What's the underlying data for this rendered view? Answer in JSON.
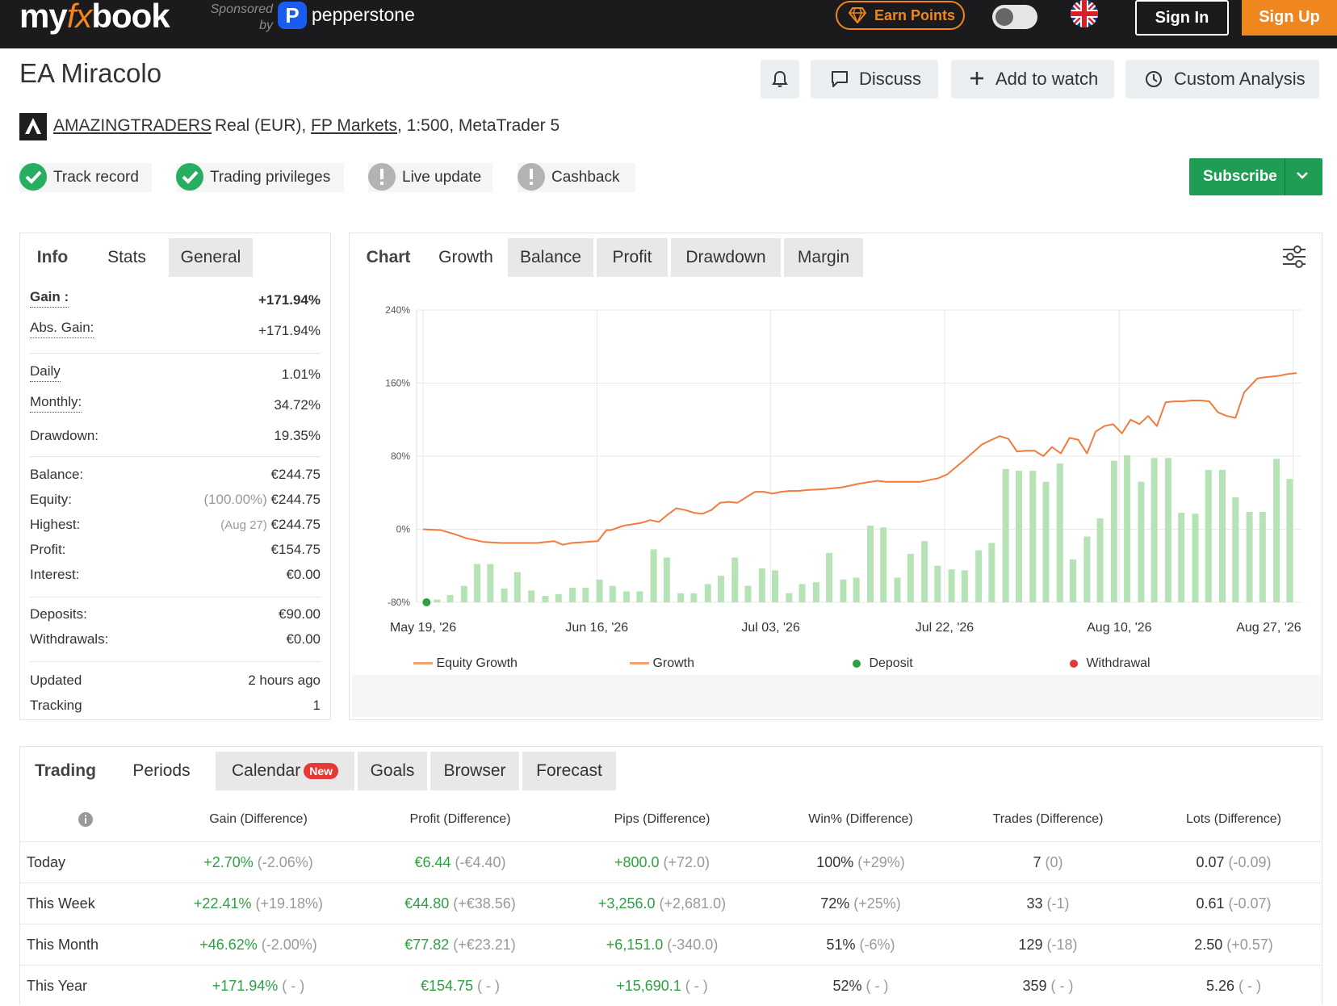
{
  "topbar": {
    "logo_pre": "my",
    "logo_fx": "fx",
    "logo_post": "book",
    "sponsored_line1": "Sponsored",
    "sponsored_line2": "by",
    "sponsor_mark": "P",
    "sponsor_name": "pepperstone",
    "earn_points": "Earn Points",
    "sign_in": "Sign In",
    "sign_up": "Sign Up",
    "accent_color": "#f0861e"
  },
  "header": {
    "title": "EA Miracolo",
    "buttons": {
      "discuss": "Discuss",
      "add_to_watch": "Add to watch",
      "custom_analysis": "Custom Analysis"
    },
    "owner": "AMAZINGTRADERS",
    "account_type": "Real (EUR),",
    "broker": "FP Markets",
    "account_rest": ", 1:500, MetaTrader 5",
    "badges": [
      {
        "label": "Track record",
        "status": "verified"
      },
      {
        "label": "Trading privileges",
        "status": "verified"
      },
      {
        "label": "Live update",
        "status": "warning"
      },
      {
        "label": "Cashback",
        "status": "warning"
      }
    ],
    "subscribe": "Subscribe"
  },
  "info_panel": {
    "tabs": [
      "Info",
      "Stats",
      "General"
    ],
    "gain_label": "Gain :",
    "gain_value": "+171.94%",
    "abs_gain_label": "Abs. Gain:",
    "abs_gain_value": "+171.94%",
    "daily_label": "Daily",
    "daily_value": "1.01%",
    "monthly_label": "Monthly:",
    "monthly_value": "34.72%",
    "drawdown_label": "Drawdown:",
    "drawdown_value": "19.35%",
    "balance_label": "Balance:",
    "balance_value": "€244.75",
    "equity_label": "Equity:",
    "equity_pct": "(100.00%)",
    "equity_value": "€244.75",
    "highest_label": "Highest:",
    "highest_date": "(Aug 27)",
    "highest_value": "€244.75",
    "profit_label": "Profit:",
    "profit_value": "€154.75",
    "interest_label": "Interest:",
    "interest_value": "€0.00",
    "deposits_label": "Deposits:",
    "deposits_value": "€90.00",
    "withdrawals_label": "Withdrawals:",
    "withdrawals_value": "€0.00",
    "updated_label": "Updated",
    "updated_value": "2 hours ago",
    "tracking_label": "Tracking",
    "tracking_value": "1"
  },
  "chart_panel": {
    "tabs": [
      "Chart",
      "Growth",
      "Balance",
      "Profit",
      "Drawdown",
      "Margin"
    ],
    "legend": {
      "equity_growth": "Equity Growth",
      "growth": "Growth",
      "deposit": "Deposit",
      "withdrawal": "Withdrawal"
    }
  },
  "chart_data": {
    "type": "line",
    "y_tick_labels": [
      "240%",
      "160%",
      "80%",
      "0%",
      "-80%"
    ],
    "ylim": [
      -80,
      240
    ],
    "x_tick_labels": [
      "May 19, '26",
      "Jun 16, '26",
      "Jul 03, '26",
      "Jul 22, '26",
      "Aug 10, '26",
      "Aug 27, '26"
    ],
    "x_tick_positions": [
      0,
      0.199,
      0.398,
      0.597,
      0.797,
      0.996
    ],
    "grid": true,
    "legend_position": "bottom",
    "colors": {
      "growth": "#f07c3e",
      "bars": "#b5e3b5",
      "deposit": "#2ea043",
      "withdrawal": "#e53935"
    },
    "series": [
      {
        "name": "Growth",
        "type": "line",
        "x": [
          0,
          0.02,
          0.035,
          0.05,
          0.07,
          0.09,
          0.11,
          0.13,
          0.15,
          0.16,
          0.17,
          0.2,
          0.21,
          0.215,
          0.23,
          0.25,
          0.26,
          0.27,
          0.28,
          0.29,
          0.3,
          0.31,
          0.32,
          0.33,
          0.34,
          0.35,
          0.36,
          0.37,
          0.38,
          0.39,
          0.4,
          0.41,
          0.42,
          0.43,
          0.44,
          0.46,
          0.48,
          0.5,
          0.52,
          0.53,
          0.55,
          0.57,
          0.59,
          0.6,
          0.62,
          0.64,
          0.66,
          0.67,
          0.68,
          0.69,
          0.7,
          0.71,
          0.72,
          0.73,
          0.74,
          0.75,
          0.76,
          0.77,
          0.78,
          0.79,
          0.8,
          0.81,
          0.82,
          0.83,
          0.84,
          0.85,
          0.86,
          0.87,
          0.88,
          0.89,
          0.9,
          0.91,
          0.92,
          0.93,
          0.94,
          0.95,
          0.955,
          0.96,
          0.97,
          0.98,
          0.99,
          1.0
        ],
        "values": [
          0,
          -1,
          -5,
          -10,
          -14,
          -15,
          -15,
          -15,
          -13,
          -17,
          -15,
          -13,
          -1,
          -1,
          4,
          7,
          10,
          8,
          16,
          23,
          21,
          18,
          17,
          21,
          29,
          30,
          29,
          35,
          41,
          41,
          39,
          41,
          42,
          42,
          43,
          44,
          46,
          50,
          53,
          52,
          52,
          52,
          56,
          60,
          76,
          93,
          102,
          99,
          85,
          86,
          86,
          80,
          90,
          83,
          100,
          98,
          83,
          107,
          113,
          115,
          105,
          120,
          115,
          124,
          113,
          139,
          140,
          140,
          141,
          141,
          140,
          128,
          124,
          122,
          150,
          160,
          165,
          166,
          167,
          168,
          170,
          171
        ]
      },
      {
        "name": "Bars",
        "type": "bar",
        "x": [
          0.016,
          0.031,
          0.047,
          0.062,
          0.077,
          0.093,
          0.108,
          0.124,
          0.14,
          0.155,
          0.171,
          0.186,
          0.202,
          0.217,
          0.233,
          0.248,
          0.264,
          0.279,
          0.295,
          0.31,
          0.326,
          0.341,
          0.357,
          0.372,
          0.388,
          0.403,
          0.419,
          0.434,
          0.45,
          0.465,
          0.481,
          0.496,
          0.512,
          0.527,
          0.543,
          0.558,
          0.574,
          0.589,
          0.605,
          0.62,
          0.636,
          0.651,
          0.667,
          0.682,
          0.698,
          0.713,
          0.729,
          0.744,
          0.76,
          0.775,
          0.791,
          0.806,
          0.822,
          0.837,
          0.853,
          0.868,
          0.884,
          0.899,
          0.915,
          0.93,
          0.946,
          0.961,
          0.977,
          0.992
        ],
        "values": [
          3,
          8,
          18,
          42,
          42,
          15,
          33,
          13,
          7,
          9,
          16,
          16,
          25,
          18,
          12,
          12,
          58,
          49,
          10,
          10,
          20,
          29,
          49,
          18,
          37,
          35,
          10,
          20,
          22,
          54,
          25,
          27,
          84,
          82,
          27,
          53,
          67,
          40,
          36,
          35,
          57,
          65,
          146,
          144,
          144,
          132,
          152,
          47,
          72,
          92,
          155,
          161,
          132,
          158,
          158,
          98,
          97,
          145,
          145,
          115,
          99,
          99,
          157,
          135
        ]
      },
      {
        "name": "Deposit",
        "type": "scatter",
        "x": [
          0.004
        ],
        "values": [
          -80
        ]
      }
    ]
  },
  "periods": {
    "tabs": [
      "Trading",
      "Periods",
      "Calendar",
      "Goals",
      "Browser",
      "Forecast"
    ],
    "new_badge": "New",
    "columns": [
      "Gain (Difference)",
      "Profit (Difference)",
      "Pips (Difference)",
      "Win% (Difference)",
      "Trades (Difference)",
      "Lots (Difference)"
    ],
    "rows": [
      {
        "label": "Today",
        "cells": [
          [
            "+2.70%",
            "(-2.06%)"
          ],
          [
            "€6.44",
            "(-€4.40)"
          ],
          [
            "+800.0",
            "(+72.0)"
          ],
          [
            "100%",
            "(+29%)"
          ],
          [
            "7",
            "(0)"
          ],
          [
            "0.07",
            "(-0.09)"
          ]
        ]
      },
      {
        "label": "This Week",
        "cells": [
          [
            "+22.41%",
            "(+19.18%)"
          ],
          [
            "€44.80",
            "(+€38.56)"
          ],
          [
            "+3,256.0",
            "(+2,681.0)"
          ],
          [
            "72%",
            "(+25%)"
          ],
          [
            "33",
            "(-1)"
          ],
          [
            "0.61",
            "(-0.07)"
          ]
        ]
      },
      {
        "label": "This Month",
        "cells": [
          [
            "+46.62%",
            "(-2.00%)"
          ],
          [
            "€77.82",
            "(+€23.21)"
          ],
          [
            "+6,151.0",
            "(-340.0)"
          ],
          [
            "51%",
            "(-6%)"
          ],
          [
            "129",
            "(-18)"
          ],
          [
            "2.50",
            "(+0.57)"
          ]
        ]
      },
      {
        "label": "This Year",
        "cells": [
          [
            "+171.94%",
            "( - )"
          ],
          [
            "€154.75",
            "( - )"
          ],
          [
            "+15,690.1",
            "( - )"
          ],
          [
            "52%",
            "( - )"
          ],
          [
            "359",
            "( - )"
          ],
          [
            "5.26",
            "( - )"
          ]
        ]
      }
    ]
  }
}
